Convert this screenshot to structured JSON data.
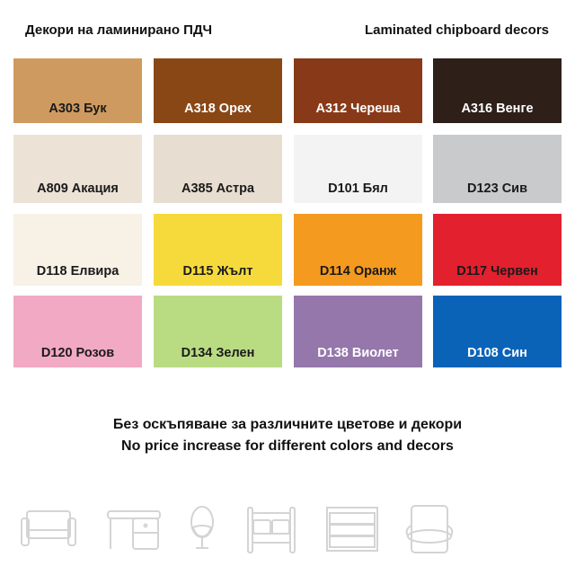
{
  "header": {
    "title_bg": "Декори на ламинирано ПДЧ",
    "title_en": "Laminated chipboard decors"
  },
  "swatches": [
    {
      "label": "A303 Бук",
      "color": "#cf9a5f",
      "text": "#1a1a1a"
    },
    {
      "label": "A318 Орех",
      "color": "#8a4716",
      "text": "#ffffff"
    },
    {
      "label": "A312 Череша",
      "color": "#883a18",
      "text": "#ffffff"
    },
    {
      "label": "A316 Венге",
      "color": "#2e1f19",
      "text": "#ffffff"
    },
    {
      "label": "A809 Акация",
      "color": "#ece2d6",
      "text": "#1a1a1a"
    },
    {
      "label": "A385 Астра",
      "color": "#e7ddd0",
      "text": "#1a1a1a"
    },
    {
      "label": "D101 Бял",
      "color": "#f3f3f3",
      "text": "#1a1a1a"
    },
    {
      "label": "D123 Сив",
      "color": "#c9cacc",
      "text": "#1a1a1a"
    },
    {
      "label": "D118 Елвира",
      "color": "#f7f1e6",
      "text": "#1a1a1a"
    },
    {
      "label": "D115 Жълт",
      "color": "#f6da3c",
      "text": "#1a1a1a"
    },
    {
      "label": "D114 Оранж",
      "color": "#f49a1f",
      "text": "#1a1a1a"
    },
    {
      "label": "D117 Червен",
      "color": "#e3202e",
      "text": "#1a1a1a"
    },
    {
      "label": "D120 Розов",
      "color": "#f2a9c3",
      "text": "#1a1a1a"
    },
    {
      "label": "D134 Зелен",
      "color": "#b9dc83",
      "text": "#1a1a1a"
    },
    {
      "label": "D138 Виолет",
      "color": "#9577ab",
      "text": "#ffffff"
    },
    {
      "label": "D108 Син",
      "color": "#0b63b8",
      "text": "#ffffff"
    }
  ],
  "note": {
    "bg": "Без оскъпяване за различните цветове и декори",
    "en": "No price increase for different colors and decors"
  },
  "icons": [
    "sofa-icon",
    "desk-icon",
    "egg-chair-icon",
    "bed-icon",
    "dresser-icon",
    "armchair-icon"
  ]
}
